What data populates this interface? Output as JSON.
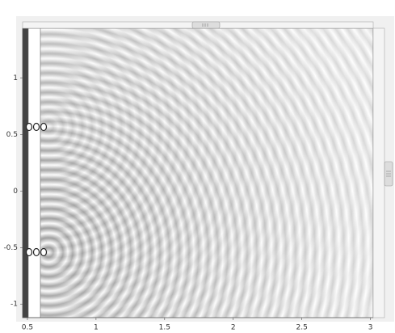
{
  "chart_data": {
    "type": "field",
    "xlim": [
      0.465,
      3.02
    ],
    "ylim": [
      -1.12,
      1.44
    ],
    "xticks": [
      0.5,
      1,
      1.5,
      2,
      2.5,
      3
    ],
    "yticks": [
      -1,
      -0.5,
      0,
      0.5,
      1
    ],
    "grid": false
  }
}
